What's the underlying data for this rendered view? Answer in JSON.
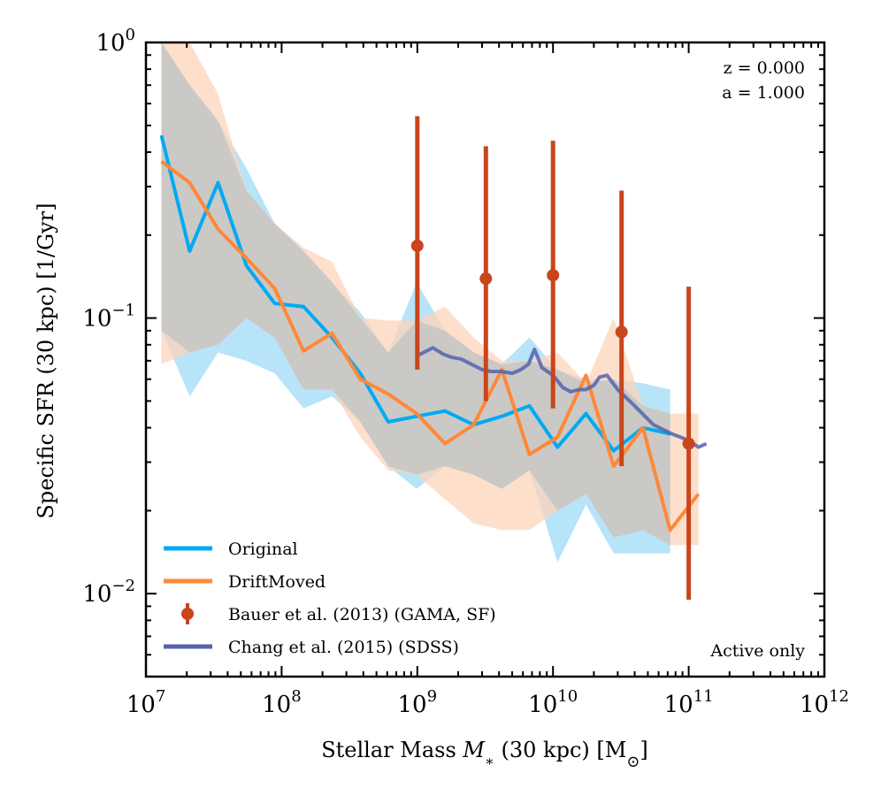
{
  "chart_data": {
    "type": "line",
    "xscale": "log",
    "yscale": "log",
    "xlim": [
      10000000,
      1000000000000
    ],
    "ylim": [
      0.005,
      1.0
    ],
    "xlabel": "Stellar Mass M* (30 kpc) [M⊙]",
    "ylabel": "Specific SFR (30 kpc) [1/Gyr]",
    "x_ticks": [
      {
        "value": 10000000,
        "base": "10",
        "exp": "7"
      },
      {
        "value": 100000000,
        "base": "10",
        "exp": "8"
      },
      {
        "value": 1000000000,
        "base": "10",
        "exp": "9"
      },
      {
        "value": 10000000000,
        "base": "10",
        "exp": "10"
      },
      {
        "value": 100000000000,
        "base": "10",
        "exp": "11"
      },
      {
        "value": 1000000000000,
        "base": "10",
        "exp": "12"
      }
    ],
    "y_ticks": [
      {
        "value": 0.01,
        "base": "10",
        "exp": "−2"
      },
      {
        "value": 0.1,
        "base": "10",
        "exp": "−1"
      },
      {
        "value": 1.0,
        "base": "10",
        "exp": "0"
      }
    ],
    "annotations": {
      "redshift": "z = 0.000",
      "scale_factor": "a = 1.000",
      "note": "Active only"
    },
    "legend_position": "lower-left",
    "series": [
      {
        "name": "Original",
        "color": "#00aaf2",
        "band_color": "#b3e3f9",
        "x": [
          13000000,
          21000000,
          34000000,
          55000000,
          89000000,
          145000000,
          235000000,
          380000000,
          610000000,
          990000000,
          1600000000,
          2600000000,
          4200000000,
          6700000000,
          10800000000,
          17500000000,
          28000000000,
          46000000000,
          73000000000
        ],
        "y": [
          0.46,
          0.175,
          0.31,
          0.155,
          0.113,
          0.11,
          0.085,
          0.063,
          0.042,
          0.044,
          0.046,
          0.041,
          0.044,
          0.048,
          0.034,
          0.045,
          0.033,
          0.04,
          0.038
        ],
        "y_low": [
          0.09,
          0.052,
          0.075,
          0.07,
          0.063,
          0.047,
          0.052,
          0.042,
          0.029,
          0.024,
          0.029,
          0.027,
          0.024,
          0.028,
          0.013,
          0.021,
          0.014,
          0.014,
          0.014
        ],
        "y_high": [
          1.0,
          0.7,
          0.52,
          0.35,
          0.22,
          0.175,
          0.135,
          0.105,
          0.075,
          0.135,
          0.09,
          0.075,
          0.068,
          0.085,
          0.065,
          0.06,
          0.06,
          0.058,
          0.055
        ]
      },
      {
        "name": "DriftMoved",
        "color": "#ff8837",
        "band_color": "#fdd4bb",
        "x": [
          13000000,
          21000000,
          34000000,
          55000000,
          89000000,
          145000000,
          235000000,
          380000000,
          610000000,
          990000000,
          1600000000,
          2600000000,
          4200000000,
          6700000000,
          10800000000,
          17500000000,
          28000000000,
          46000000000,
          73000000000,
          118000000000
        ],
        "y": [
          0.37,
          0.31,
          0.21,
          0.165,
          0.128,
          0.076,
          0.088,
          0.06,
          0.053,
          0.045,
          0.035,
          0.041,
          0.065,
          0.032,
          0.037,
          0.062,
          0.029,
          0.04,
          0.017,
          0.023
        ],
        "y_low": [
          0.068,
          0.075,
          0.08,
          0.1,
          0.085,
          0.055,
          0.055,
          0.037,
          0.028,
          0.027,
          0.022,
          0.018,
          0.017,
          0.017,
          0.02,
          0.023,
          0.016,
          0.017,
          0.015,
          0.015
        ],
        "y_high": [
          1.0,
          1.0,
          0.65,
          0.29,
          0.22,
          0.18,
          0.16,
          0.1,
          0.098,
          0.098,
          0.11,
          0.085,
          0.07,
          0.07,
          0.075,
          0.058,
          0.1,
          0.048,
          0.045,
          0.045
        ]
      },
      {
        "name": "Bauer et al. (2013) (GAMA, SF)",
        "color": "#c9451b",
        "type": "errorbar",
        "x": [
          1000000000,
          3200000000,
          10000000000,
          32000000000,
          100000000000
        ],
        "y": [
          0.183,
          0.139,
          0.143,
          0.089,
          0.035
        ],
        "y_low": [
          0.065,
          0.05,
          0.047,
          0.029,
          0.0095
        ],
        "y_high": [
          0.54,
          0.42,
          0.44,
          0.29,
          0.13
        ]
      },
      {
        "name": "Chang et al. (2015) (SDSS)",
        "color": "#5563ae",
        "x": [
          1000000000,
          1300000000,
          1550000000,
          1800000000,
          2100000000,
          2500000000,
          3000000000,
          3500000000,
          4200000000,
          5000000000,
          5800000000,
          6600000000,
          7300000000,
          8300000000,
          10000000000,
          11800000000,
          13500000000,
          15500000000,
          17500000000,
          20000000000,
          22000000000,
          25000000000,
          30000000000,
          40000000000,
          55000000000,
          75000000000,
          100000000000,
          118000000000,
          135000000000
        ],
        "y": [
          0.073,
          0.078,
          0.074,
          0.072,
          0.071,
          0.068,
          0.065,
          0.064,
          0.064,
          0.063,
          0.065,
          0.068,
          0.077,
          0.066,
          0.062,
          0.056,
          0.054,
          0.055,
          0.055,
          0.057,
          0.061,
          0.062,
          0.055,
          0.048,
          0.041,
          0.038,
          0.036,
          0.034,
          0.035
        ]
      }
    ]
  }
}
